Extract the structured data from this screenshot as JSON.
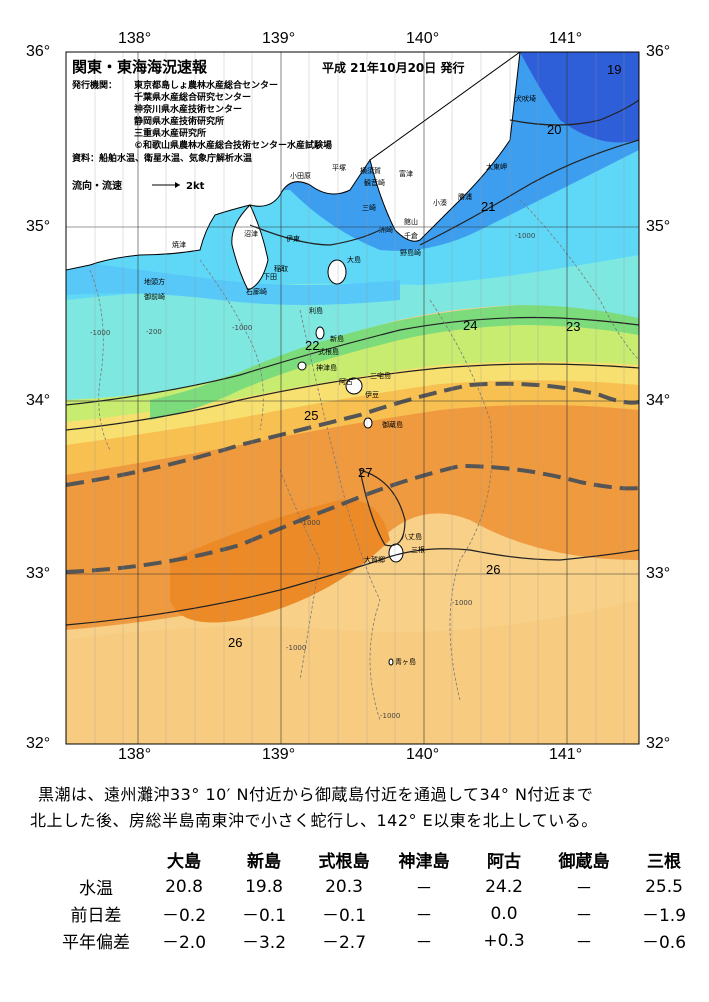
{
  "header": {
    "title": "関東・東海海況速報",
    "issued": "平成 21年10月20日 発行"
  },
  "agencies": {
    "label": "発行機関：",
    "list": [
      "東京都島しょ農林水産総合センター",
      "千葉県水産総合研究センター",
      "神奈川県水産技術センター",
      "静岡県水産技術研究所",
      "三重県水産研究所",
      "©和歌山県農林水産総合技術センター水産試験場"
    ],
    "sources": "資料：船舶水温、衛星水温、気象庁解析水温"
  },
  "legend": {
    "current_label": "流向・流速",
    "scale": "2kt"
  },
  "axes": {
    "lon": [
      "138°",
      "139°",
      "140°",
      "141°"
    ],
    "lat": [
      "36°",
      "35°",
      "34°",
      "33°",
      "32°"
    ]
  },
  "isotherms": [
    "19",
    "20",
    "21",
    "22",
    "23",
    "24",
    "25",
    "26",
    "26",
    "27"
  ],
  "depth_labels": [
    "-1000",
    "-200",
    "-1000",
    "-1000",
    "-1000",
    "-1000",
    "-1000",
    "-1000"
  ],
  "places": [
    "犬吠埼",
    "太東岬",
    "勝浦",
    "小湊",
    "洲崎",
    "館山",
    "千倉",
    "野島崎",
    "富津",
    "観音崎",
    "横須賀",
    "三崎",
    "平塚",
    "小田原",
    "大島",
    "伊東",
    "沼津",
    "焼津",
    "稲取",
    "下田",
    "石廊崎",
    "御前崎",
    "地頭方",
    "利島",
    "新島",
    "式根島",
    "神津島",
    "三宅島",
    "阿古",
    "伊豆",
    "御蔵島",
    "八丈島",
    "三根",
    "大賀郷",
    "青ヶ島"
  ],
  "summary": {
    "line1": "黒潮は、遠州灘沖33° 10′ N付近から御蔵島付近を通過して34° N付近まで",
    "line2": "北上した後、房総半島南東沖で小さく蛇行し、142° E以東を北上している。"
  },
  "table": {
    "headers": [
      "",
      "大島",
      "新島",
      "式根島",
      "神津島",
      "阿古",
      "御蔵島",
      "三根"
    ],
    "rows": [
      {
        "label": "水温",
        "values": [
          "20.8",
          "19.8",
          "20.3",
          "－",
          "24.2",
          "－",
          "25.5"
        ]
      },
      {
        "label": "前日差",
        "values": [
          "－0.2",
          "－0.1",
          "－0.1",
          "－",
          "0.0",
          "－",
          "－1.9"
        ]
      },
      {
        "label": "平年偏差",
        "values": [
          "－2.0",
          "－3.2",
          "－2.7",
          "－",
          "+0.3",
          "－",
          "－0.6"
        ]
      }
    ]
  },
  "colors": {
    "cold": "#2f5fd8",
    "cool": "#3d9ef0",
    "cyan": "#5fd8f8",
    "aqua": "#7ee8e0",
    "green": "#7cdc7c",
    "yellowgreen": "#c8ec70",
    "yellow": "#f8e070",
    "lightorange": "#f8c050",
    "orange": "#f09a38",
    "darkorange": "#ec8a28",
    "paleorange": "#f8c878",
    "kuroshio": "#555555"
  }
}
